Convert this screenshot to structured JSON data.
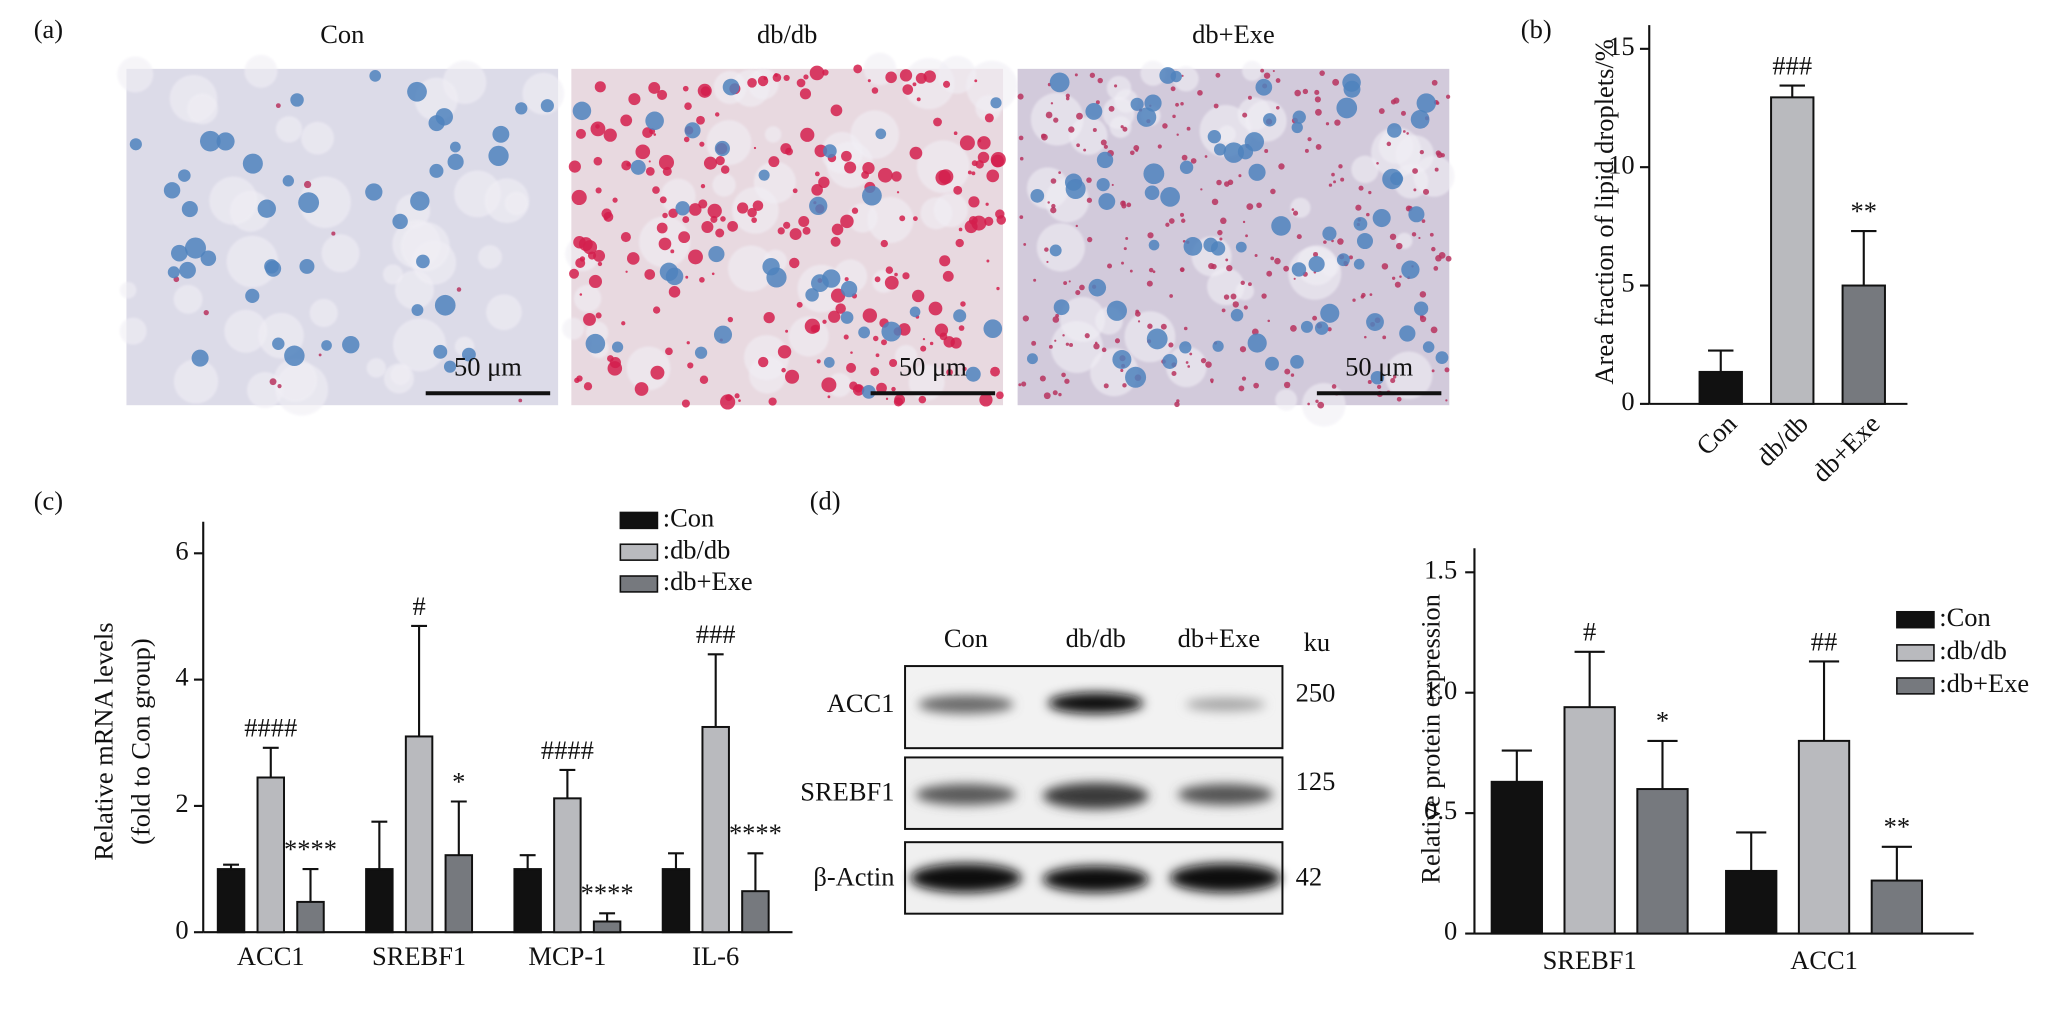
{
  "panel_a": {
    "label": "(a)",
    "groups": [
      "Con",
      "db/db",
      "db+Exe"
    ],
    "scale_bar": "50 μm"
  },
  "western_blot": {
    "label": "(d)",
    "lanes": [
      "Con",
      "db/db",
      "db+Exe"
    ],
    "unit": "ku",
    "rows": [
      {
        "name": "ACC1",
        "size": 250
      },
      {
        "name": "SREBF1",
        "size": 125
      },
      {
        "name": "β-Actin",
        "size": 42
      }
    ]
  },
  "chart_data": [
    {
      "type": "bar",
      "panel_label": "(b)",
      "y_label": "Area fraction of lipid droplets/%",
      "categories": [
        "Con",
        "db/db",
        "db+Exe"
      ],
      "values": [
        1.35,
        12.95,
        5.0
      ],
      "errors": [
        0.9,
        0.5,
        2.3
      ],
      "colors": [
        "#111111",
        "#b9babe",
        "#76797e"
      ],
      "significance": [
        null,
        "###",
        "**"
      ],
      "ylim": [
        0,
        16
      ],
      "yticks": [
        0,
        5,
        10,
        15
      ]
    },
    {
      "type": "bar",
      "panel_label": "(c)",
      "y_label": [
        "Relative mRNA levels",
        "(fold to Con group)"
      ],
      "categories": [
        "ACC1",
        "SREBF1",
        "MCP-1",
        "IL-6"
      ],
      "series": [
        {
          "name": ":Con",
          "color": "#111111",
          "values": [
            1.0,
            1.0,
            1.0,
            1.0
          ],
          "errors": [
            0.07,
            0.75,
            0.22,
            0.25
          ],
          "significance": [
            null,
            null,
            null,
            null
          ]
        },
        {
          "name": ":db/db",
          "color": "#b9babe",
          "values": [
            2.45,
            3.1,
            2.12,
            3.25
          ],
          "errors": [
            0.47,
            1.75,
            0.45,
            1.15
          ],
          "significance": [
            "####",
            "#",
            "####",
            "###"
          ]
        },
        {
          "name": ":db+Exe",
          "color": "#76797e",
          "values": [
            0.48,
            1.22,
            0.17,
            0.65
          ],
          "errors": [
            0.52,
            0.85,
            0.13,
            0.6
          ],
          "significance": [
            "****",
            "*",
            "****",
            "****"
          ]
        }
      ],
      "ylim": [
        0,
        6.5
      ],
      "yticks": [
        0,
        2,
        4,
        6
      ]
    },
    {
      "type": "bar",
      "y_label": "Relative protein expression",
      "categories": [
        "SREBF1",
        "ACC1"
      ],
      "series": [
        {
          "name": ":Con",
          "color": "#111111",
          "values": [
            0.63,
            0.26
          ],
          "errors": [
            0.13,
            0.16
          ],
          "significance": [
            null,
            null
          ]
        },
        {
          "name": ":db/db",
          "color": "#b9babe",
          "values": [
            0.94,
            0.8
          ],
          "errors": [
            0.23,
            0.33
          ],
          "significance": [
            "#",
            "##"
          ]
        },
        {
          "name": ":db+Exe",
          "color": "#76797e",
          "values": [
            0.6,
            0.22
          ],
          "errors": [
            0.2,
            0.14
          ],
          "significance": [
            "*",
            "**"
          ]
        }
      ],
      "ylim": [
        0,
        1.6
      ],
      "yticks": [
        0,
        0.5,
        {
          "value": 1,
          "label": "1.0"
        },
        1.5
      ]
    }
  ]
}
